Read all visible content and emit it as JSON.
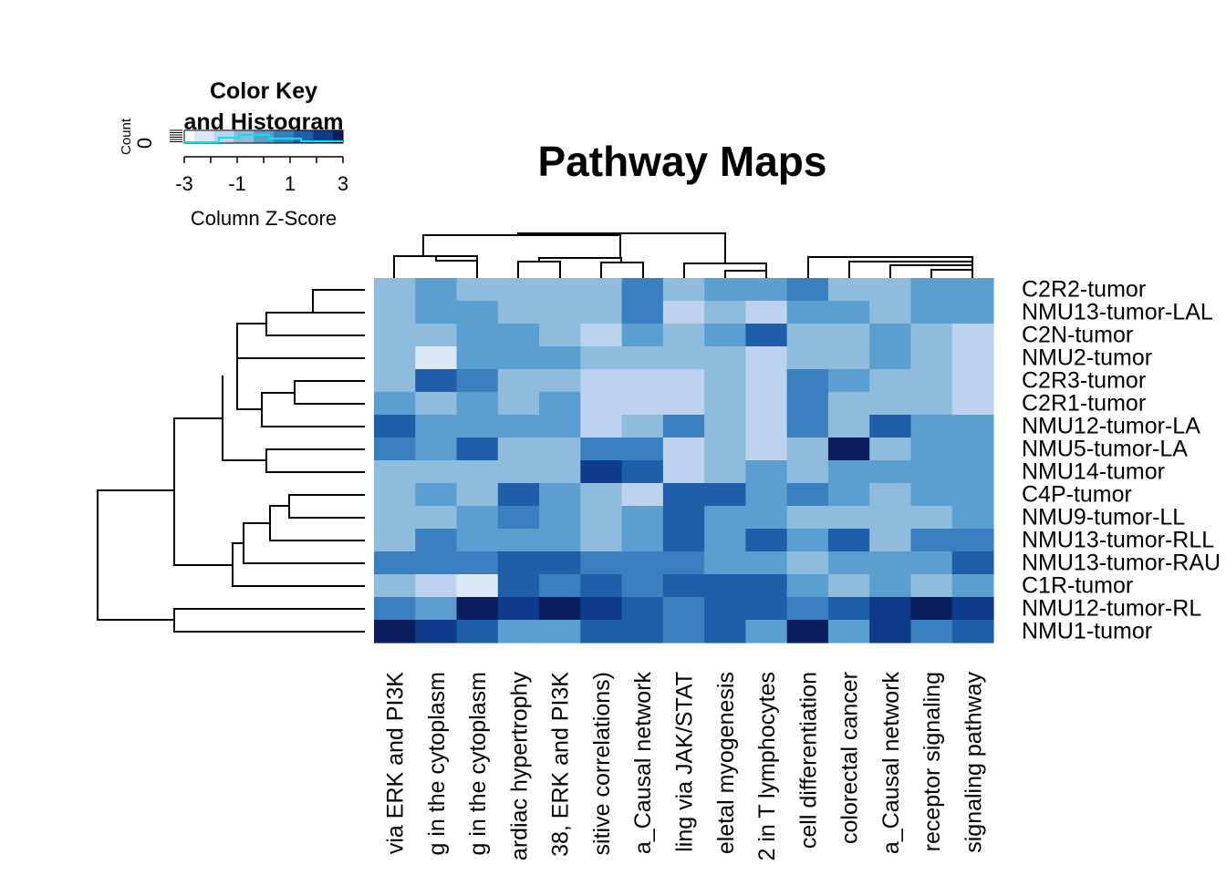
{
  "chart_data": {
    "type": "heatmap",
    "title": "Pathway Maps",
    "color_key": {
      "title_line1": "Color Key",
      "title_line2": "and Histogram",
      "xlabel": "Column Z-Score",
      "ylabel": "Count",
      "y_tick": "0",
      "ticks": [
        "-3",
        "-1",
        "1",
        "3"
      ],
      "range": [
        -3,
        3
      ],
      "histogram_color": "#00e5ee",
      "colors": [
        "#ffffff",
        "#dbe8f6",
        "#bdd2ee",
        "#8fbcdd",
        "#5b9fd0",
        "#3a7fc0",
        "#1f5ea9",
        "#0e3b8a",
        "#0b1f5e"
      ]
    },
    "rows": [
      "C2R2-tumor",
      "NMU13-tumor-LAL",
      "C2N-tumor",
      "NMU2-tumor",
      "C2R3-tumor",
      "C2R1-tumor",
      "NMU12-tumor-LA",
      "NMU5-tumor-LA",
      "NMU14-tumor",
      "C4P-tumor",
      "NMU9-tumor-LL",
      "NMU13-tumor-RLL",
      "NMU13-tumor-RAU",
      "C1R-tumor",
      "NMU12-tumor-RL",
      "NMU1-tumor"
    ],
    "columns": [
      "via ERK and PI3K",
      "g in the cytoplasm",
      "g in the cytoplasm",
      "ardiac hypertrophy",
      "38, ERK and PI3K",
      "sitive correlations)",
      "a_Causal network",
      "ling via JAK/STAT",
      "eletal myogenesis",
      "2 in T lymphocytes",
      "cell differentiation",
      "colorectal cancer",
      "a_Causal network",
      "receptor signaling",
      "signaling pathway"
    ],
    "values": [
      [
        3,
        4,
        3,
        3,
        3,
        3,
        5,
        3,
        4,
        4,
        5,
        3,
        3,
        4,
        4
      ],
      [
        3,
        4,
        4,
        3,
        3,
        3,
        5,
        2,
        3,
        2,
        4,
        4,
        3,
        4,
        4
      ],
      [
        3,
        3,
        4,
        4,
        3,
        2,
        4,
        3,
        4,
        6,
        3,
        3,
        4,
        3,
        2
      ],
      [
        3,
        1,
        4,
        4,
        4,
        3,
        3,
        3,
        3,
        2,
        3,
        3,
        4,
        3,
        2
      ],
      [
        3,
        6,
        5,
        3,
        3,
        2,
        2,
        2,
        3,
        2,
        5,
        4,
        3,
        3,
        2
      ],
      [
        4,
        3,
        4,
        3,
        4,
        2,
        2,
        2,
        3,
        2,
        5,
        3,
        3,
        3,
        2
      ],
      [
        6,
        4,
        4,
        4,
        4,
        2,
        3,
        5,
        3,
        2,
        5,
        3,
        6,
        4,
        4
      ],
      [
        5,
        4,
        6,
        3,
        3,
        5,
        5,
        2,
        3,
        2,
        3,
        8,
        3,
        4,
        4
      ],
      [
        3,
        3,
        3,
        3,
        3,
        7,
        6,
        2,
        3,
        4,
        3,
        4,
        4,
        4,
        4
      ],
      [
        3,
        4,
        3,
        6,
        4,
        3,
        2,
        6,
        6,
        4,
        5,
        4,
        3,
        4,
        4
      ],
      [
        3,
        3,
        4,
        5,
        4,
        3,
        4,
        6,
        4,
        4,
        3,
        3,
        3,
        3,
        4
      ],
      [
        3,
        5,
        4,
        4,
        4,
        3,
        4,
        6,
        4,
        6,
        4,
        6,
        3,
        5,
        5
      ],
      [
        5,
        5,
        5,
        6,
        6,
        5,
        5,
        5,
        4,
        4,
        3,
        4,
        4,
        4,
        6
      ],
      [
        3,
        2,
        1,
        6,
        5,
        6,
        5,
        6,
        6,
        6,
        4,
        3,
        4,
        3,
        4
      ],
      [
        5,
        4,
        8,
        7,
        8,
        7,
        6,
        5,
        6,
        6,
        5,
        6,
        7,
        8,
        7
      ],
      [
        8,
        7,
        6,
        4,
        4,
        6,
        6,
        5,
        6,
        4,
        8,
        4,
        7,
        5,
        6
      ]
    ]
  }
}
